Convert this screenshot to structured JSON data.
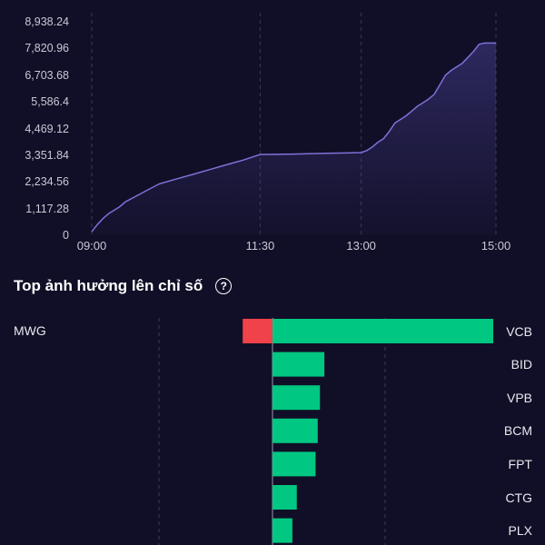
{
  "index_chart": {
    "chart_data": {
      "type": "area",
      "y_ticks": [
        "0",
        "1,117.28",
        "2,234.56",
        "3,351.84",
        "4,469.12",
        "5,586.4",
        "6,703.68",
        "7,820.96",
        "8,938.24"
      ],
      "x_ticks": [
        "09:00",
        "11:30",
        "13:00",
        "15:00"
      ],
      "ylim": [
        0,
        8938.24
      ],
      "x": [
        "09:00",
        "09:05",
        "09:10",
        "09:15",
        "09:20",
        "09:25",
        "09:30",
        "09:40",
        "09:50",
        "10:00",
        "10:15",
        "10:30",
        "10:45",
        "11:00",
        "11:15",
        "11:30",
        "12:00",
        "12:30",
        "13:00",
        "13:05",
        "13:10",
        "13:15",
        "13:20",
        "13:25",
        "13:30",
        "13:35",
        "13:40",
        "13:45",
        "13:50",
        "13:55",
        "14:00",
        "14:05",
        "14:10",
        "14:15",
        "14:20",
        "14:25",
        "14:30",
        "14:35",
        "14:40",
        "14:45",
        "14:50",
        "15:00"
      ],
      "values": [
        150,
        450,
        700,
        900,
        1050,
        1200,
        1400,
        1650,
        1900,
        2150,
        2350,
        2550,
        2750,
        2950,
        3150,
        3380,
        3400,
        3430,
        3460,
        3550,
        3700,
        3900,
        4050,
        4350,
        4700,
        4850,
        5000,
        5200,
        5400,
        5550,
        5700,
        5900,
        6300,
        6700,
        6900,
        7050,
        7200,
        7450,
        7700,
        8000,
        8050,
        8050
      ],
      "line_color": "#7c72d8",
      "grid": true
    }
  },
  "impact_section": {
    "title": "Top ảnh hưởng lên chỉ số",
    "help_icon": "?",
    "chart_data": {
      "type": "bar",
      "orientation": "horizontal",
      "positive_color": "#00c781",
      "negative_color": "#f0424a",
      "positive": [
        {
          "label": "VCB",
          "value": 100
        },
        {
          "label": "BID",
          "value": 23.5
        },
        {
          "label": "VPB",
          "value": 21.5
        },
        {
          "label": "BCM",
          "value": 20.5
        },
        {
          "label": "FPT",
          "value": 19.5
        },
        {
          "label": "CTG",
          "value": 11
        },
        {
          "label": "PLX",
          "value": 9
        }
      ],
      "negative": [
        {
          "label": "MWG",
          "value": -13.5
        }
      ]
    }
  }
}
